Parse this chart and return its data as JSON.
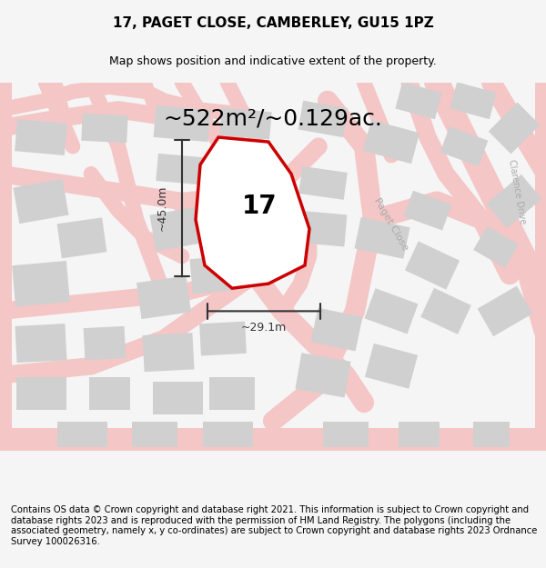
{
  "title": "17, PAGET CLOSE, CAMBERLEY, GU15 1PZ",
  "subtitle": "Map shows position and indicative extent of the property.",
  "area_text": "~522m²/~0.129ac.",
  "label_17": "17",
  "dim_height": "~45.0m",
  "dim_width": "~29.1m",
  "street_label": "Paget Close",
  "street_label2": "Clarence Drive",
  "footer_text": "Contains OS data © Crown copyright and database right 2021. This information is subject to Crown copyright and database rights 2023 and is reproduced with the permission of HM Land Registry. The polygons (including the associated geometry, namely x, y co-ordinates) are subject to Crown copyright and database rights 2023 Ordnance Survey 100026316.",
  "bg_color": "#f5f5f5",
  "map_bg": "#e8e8e8",
  "plot_fill": "#ffffff",
  "plot_edge": "#cc0000",
  "road_color": "#f4c6c6",
  "building_color": "#d0d0d0",
  "dim_color": "#333333",
  "title_fontsize": 11,
  "subtitle_fontsize": 9,
  "area_fontsize": 18,
  "label_fontsize": 20,
  "footer_fontsize": 7.2
}
